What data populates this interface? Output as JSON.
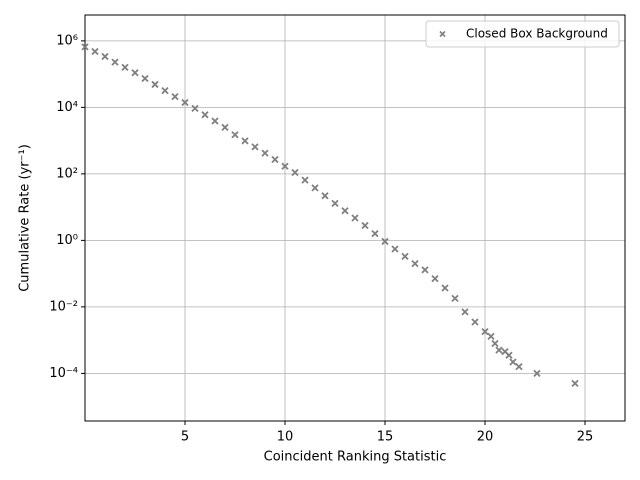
{
  "chart_data": {
    "type": "scatter",
    "log_y": true,
    "grid": true,
    "legend": "upper right",
    "xlabel": "Coincident Ranking Statistic",
    "ylabel": "Cumulative Rate (yr⁻¹)",
    "xlim": [
      0,
      27
    ],
    "xticks": [
      5,
      10,
      15,
      20,
      25
    ],
    "ylim": [
      3.7e-06,
      6000000
    ],
    "yticks": [
      {
        "value": 0.0001,
        "label": "10⁻⁴"
      },
      {
        "value": 0.01,
        "label": "10⁻²"
      },
      {
        "value": 1,
        "label": "10⁰"
      },
      {
        "value": 100,
        "label": "10²"
      },
      {
        "value": 10000,
        "label": "10⁴"
      },
      {
        "value": 1000000,
        "label": "10⁶"
      }
    ],
    "x": [
      0,
      0.5,
      1,
      1.5,
      2,
      2.5,
      3,
      3.5,
      4,
      4.5,
      5,
      5.5,
      6,
      6.5,
      7,
      7.5,
      8,
      8.5,
      9,
      9.5,
      10,
      10.5,
      11,
      11.5,
      12,
      12.5,
      13,
      13.5,
      14,
      14.5,
      15,
      15.5,
      16,
      16.5,
      17,
      17.5,
      18,
      18.5,
      19,
      19.5,
      20,
      20.3,
      20.5,
      20.7,
      21,
      21.2,
      21.4,
      21.7,
      22.6,
      24.5
    ],
    "series": [
      {
        "name": "Closed Box Background",
        "color": "#7f7f7f",
        "values": [
          660000,
          480000,
          340000,
          230000,
          160000,
          110000,
          74000,
          49000,
          32000,
          21000,
          14000,
          9300,
          6000,
          3900,
          2500,
          1500,
          980,
          650,
          420,
          270,
          170,
          110,
          65,
          38,
          22,
          13,
          7.8,
          4.7,
          2.8,
          1.6,
          0.93,
          0.55,
          0.33,
          0.2,
          0.13,
          0.071,
          0.037,
          0.018,
          0.0071,
          0.0035,
          0.0018,
          0.0013,
          0.00079,
          0.0005,
          0.00045,
          0.00035,
          0.00022,
          0.00016,
          0.0001,
          5e-05
        ]
      }
    ]
  }
}
